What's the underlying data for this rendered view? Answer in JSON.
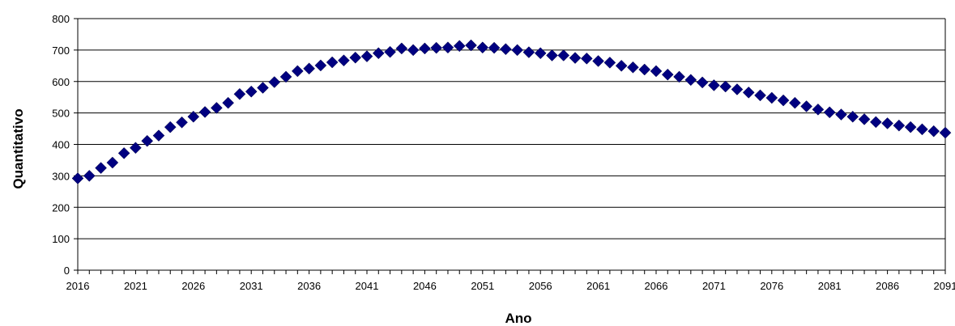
{
  "chart_data": {
    "type": "scatter",
    "title": "",
    "xlabel": "Ano",
    "ylabel": "Quantitativo",
    "xlim": [
      2016,
      2091
    ],
    "ylim": [
      0,
      800
    ],
    "yticks": [
      0,
      100,
      200,
      300,
      400,
      500,
      600,
      700,
      800
    ],
    "xticks": [
      2016,
      2021,
      2026,
      2031,
      2036,
      2041,
      2046,
      2051,
      2056,
      2061,
      2066,
      2071,
      2076,
      2081,
      2086,
      2091
    ],
    "grid": "horizontal",
    "legend": "none",
    "marker": "diamond",
    "color": "#000080",
    "x": [
      2016,
      2017,
      2018,
      2019,
      2020,
      2021,
      2022,
      2023,
      2024,
      2025,
      2026,
      2027,
      2028,
      2029,
      2030,
      2031,
      2032,
      2033,
      2034,
      2035,
      2036,
      2037,
      2038,
      2039,
      2040,
      2041,
      2042,
      2043,
      2044,
      2045,
      2046,
      2047,
      2048,
      2049,
      2050,
      2051,
      2052,
      2053,
      2054,
      2055,
      2056,
      2057,
      2058,
      2059,
      2060,
      2061,
      2062,
      2063,
      2064,
      2065,
      2066,
      2067,
      2068,
      2069,
      2070,
      2071,
      2072,
      2073,
      2074,
      2075,
      2076,
      2077,
      2078,
      2079,
      2080,
      2081,
      2082,
      2083,
      2084,
      2085,
      2086,
      2087,
      2088,
      2089,
      2090,
      2091
    ],
    "y": [
      292,
      300,
      325,
      342,
      372,
      389,
      411,
      428,
      455,
      470,
      488,
      503,
      516,
      532,
      560,
      568,
      580,
      598,
      615,
      633,
      641,
      651,
      661,
      667,
      676,
      680,
      690,
      694,
      705,
      700,
      705,
      707,
      708,
      713,
      715,
      708,
      707,
      703,
      700,
      693,
      690,
      683,
      683,
      675,
      673,
      665,
      660,
      650,
      645,
      638,
      633,
      622,
      615,
      605,
      597,
      588,
      584,
      575,
      565,
      556,
      548,
      540,
      532,
      521,
      511,
      502,
      495,
      488,
      480,
      471,
      467,
      460,
      455,
      448,
      442,
      437
    ]
  }
}
